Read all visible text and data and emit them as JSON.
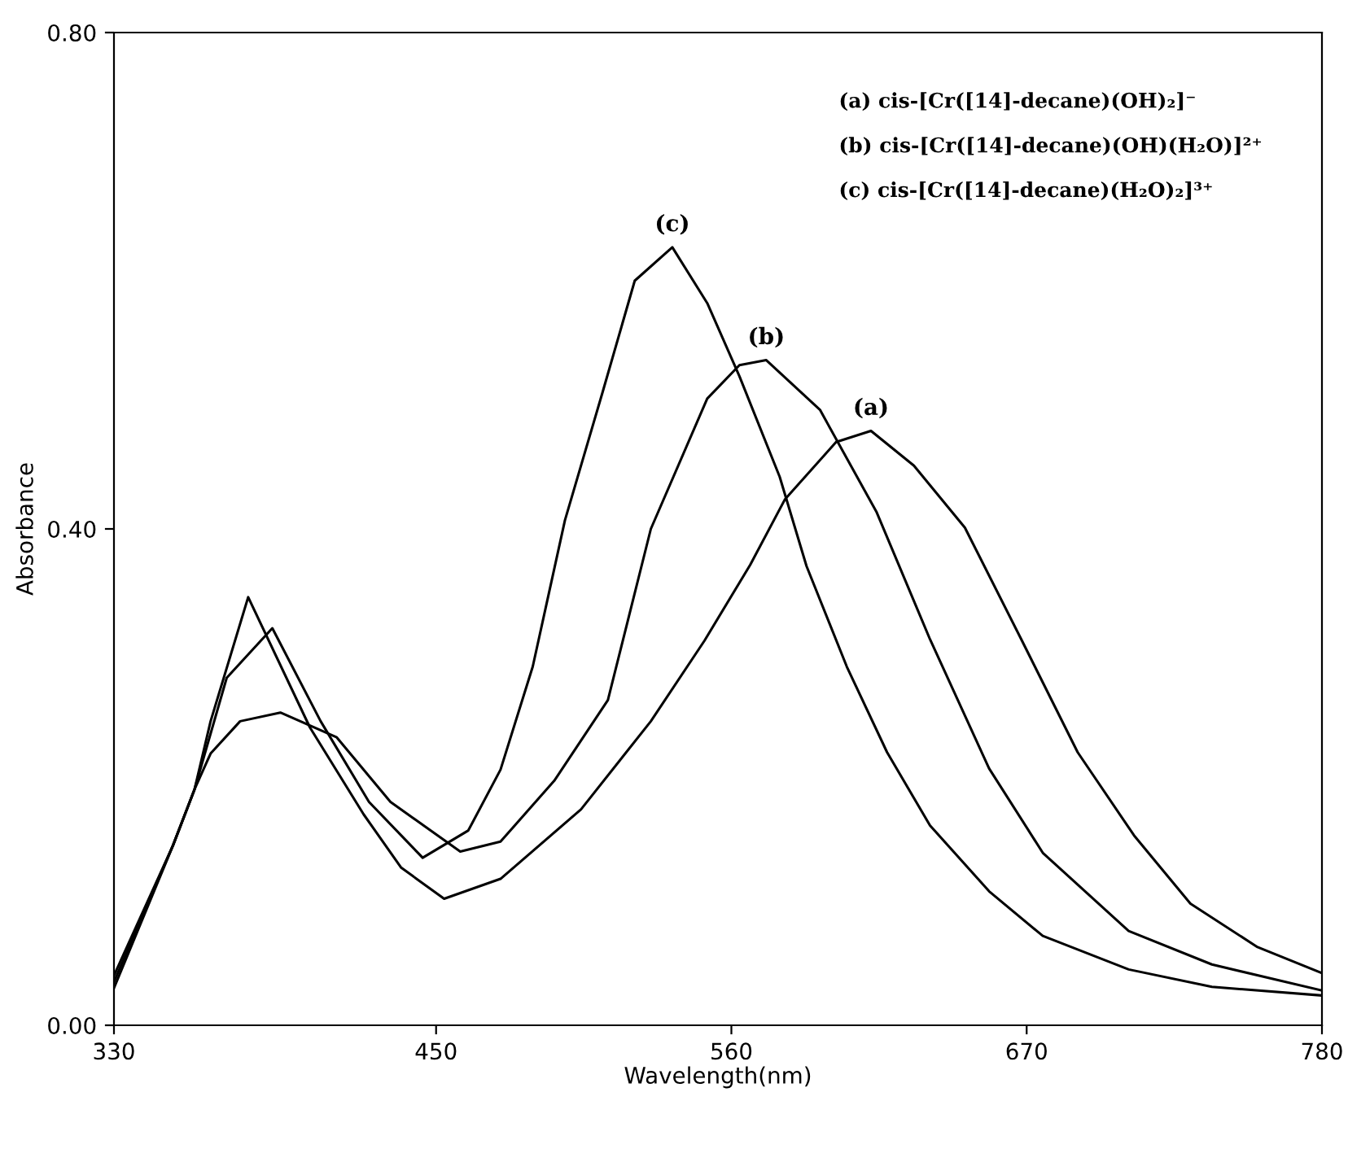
{
  "chart_data": {
    "type": "line",
    "xlabel": "Wavelength(nm)",
    "ylabel": "Absorbance",
    "xlim": [
      330,
      780
    ],
    "ylim": [
      0,
      0.8
    ],
    "xticks": [
      330,
      450,
      560,
      670,
      780
    ],
    "yticks": [
      {
        "value": 0,
        "label": "0.00"
      },
      {
        "value": 0.4,
        "label": "0.40"
      },
      {
        "value": 0.8,
        "label": "0.80"
      }
    ],
    "grid": false,
    "legend": false,
    "marker": "none",
    "line_style": "solid",
    "series": [
      {
        "name": "(a)",
        "color": "#000000",
        "x": [
          330,
          352,
          360,
          366,
          380,
          403,
          423,
          437,
          453,
          474,
          504,
          530,
          550,
          567,
          580,
          599,
          612,
          628,
          647,
          668,
          689,
          710,
          731,
          756,
          780
        ],
        "values": [
          0.04,
          0.145,
          0.19,
          0.245,
          0.345,
          0.24,
          0.17,
          0.127,
          0.102,
          0.118,
          0.174,
          0.245,
          0.31,
          0.371,
          0.424,
          0.47,
          0.479,
          0.451,
          0.401,
          0.311,
          0.22,
          0.153,
          0.098,
          0.063,
          0.042
        ]
      },
      {
        "name": "(b)",
        "color": "#000000",
        "x": [
          330,
          352,
          360,
          366,
          377,
          392,
          413,
          433,
          459,
          474,
          494,
          514,
          530,
          551,
          563,
          573,
          593,
          614,
          634,
          656,
          676,
          708,
          739,
          780
        ],
        "values": [
          0.035,
          0.145,
          0.19,
          0.219,
          0.245,
          0.252,
          0.232,
          0.18,
          0.14,
          0.148,
          0.197,
          0.262,
          0.4,
          0.505,
          0.532,
          0.536,
          0.496,
          0.414,
          0.311,
          0.207,
          0.139,
          0.076,
          0.049,
          0.028
        ]
      },
      {
        "name": "(c)",
        "color": "#000000",
        "x": [
          330,
          352,
          360,
          372,
          389,
          407,
          425,
          445,
          462,
          474,
          486,
          498,
          512,
          524,
          538,
          551,
          563,
          578,
          588,
          603,
          618,
          634,
          656,
          676,
          708,
          739,
          780
        ],
        "values": [
          0.03,
          0.145,
          0.19,
          0.28,
          0.32,
          0.245,
          0.18,
          0.135,
          0.157,
          0.206,
          0.289,
          0.407,
          0.51,
          0.6,
          0.627,
          0.582,
          0.523,
          0.442,
          0.37,
          0.289,
          0.22,
          0.161,
          0.108,
          0.072,
          0.045,
          0.031,
          0.024
        ]
      }
    ],
    "annotations": [
      "(a) cis-[Cr([14]-decane)(OH)₂]⁻",
      "(b) cis-[Cr([14]-decane)(OH)(H₂O)]²⁺",
      "(c) cis-[Cr([14]-decane)(H₂O)₂]³⁺"
    ]
  }
}
